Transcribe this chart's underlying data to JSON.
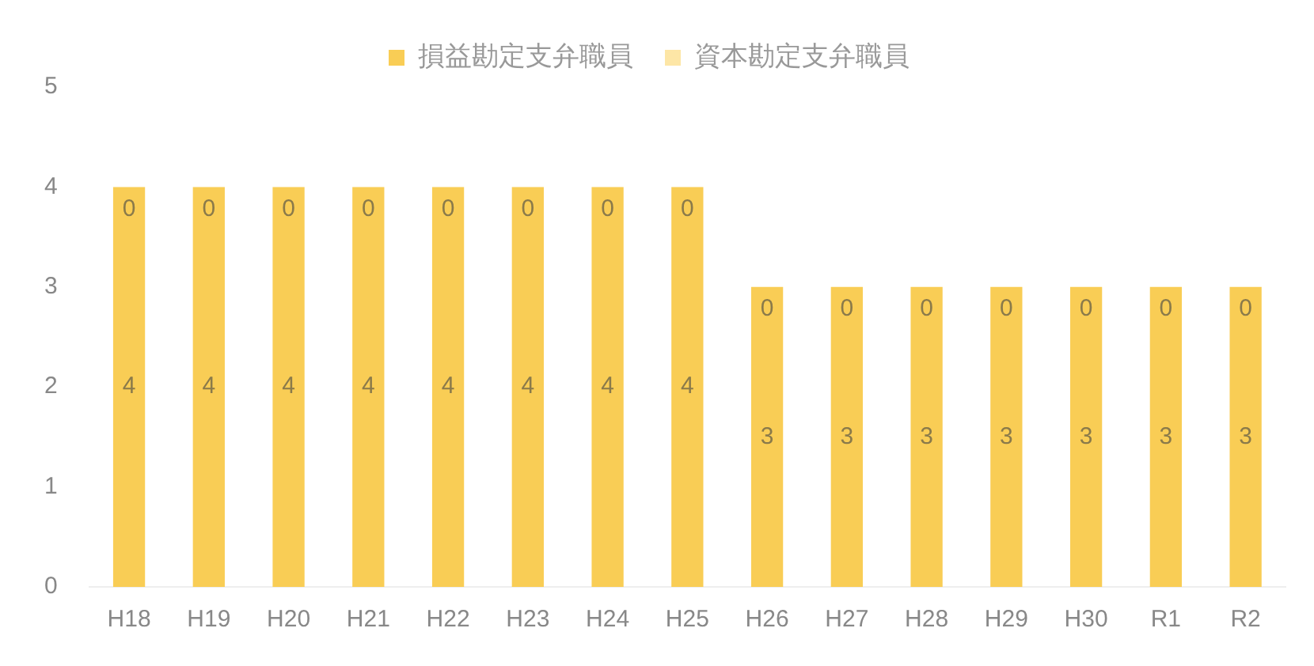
{
  "chart_data": {
    "type": "bar",
    "stacked": true,
    "categories": [
      "H18",
      "H19",
      "H20",
      "H21",
      "H22",
      "H23",
      "H24",
      "H25",
      "H26",
      "H27",
      "H28",
      "H29",
      "H30",
      "R1",
      "R2"
    ],
    "series": [
      {
        "name": "損益勘定支弁職員",
        "color": "#f9cd55",
        "values": [
          4,
          4,
          4,
          4,
          4,
          4,
          4,
          4,
          3,
          3,
          3,
          3,
          3,
          3,
          3
        ]
      },
      {
        "name": "資本勘定支弁職員",
        "color": "#fde6a6",
        "values": [
          0,
          0,
          0,
          0,
          0,
          0,
          0,
          0,
          0,
          0,
          0,
          0,
          0,
          0,
          0
        ]
      }
    ],
    "ylim": [
      0,
      5
    ],
    "yticks": [
      0,
      1,
      2,
      3,
      4,
      5
    ],
    "grid": false,
    "legend": "top",
    "data_labels": true
  }
}
